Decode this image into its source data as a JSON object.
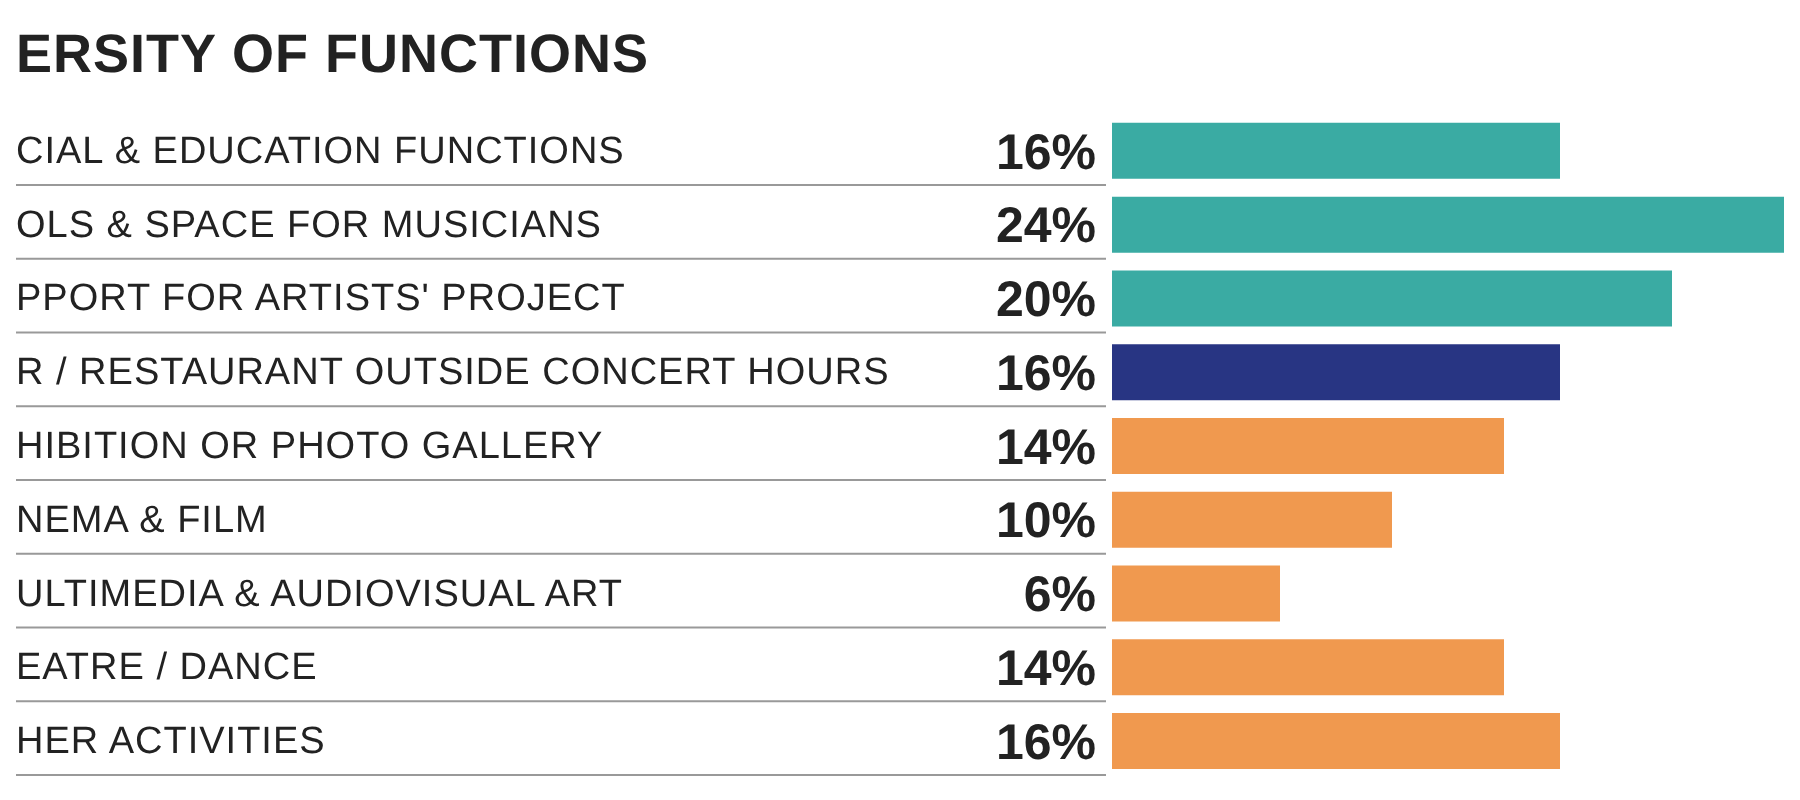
{
  "chart_data": {
    "type": "bar",
    "orientation": "horizontal",
    "title": "ERSITY OF FUNCTIONS",
    "categories": [
      "CIAL & EDUCATION FUNCTIONS",
      "OLS & SPACE FOR MUSICIANS",
      "PPORT FOR ARTISTS' PROJECT",
      "R / RESTAURANT OUTSIDE CONCERT HOURS",
      "HIBITION OR PHOTO GALLERY",
      "NEMA & FILM",
      "ULTIMEDIA & AUDIOVISUAL ART",
      "EATRE / DANCE",
      "HER ACTIVITIES"
    ],
    "values": [
      16,
      24,
      20,
      16,
      14,
      10,
      6,
      14,
      16
    ],
    "value_labels": [
      "16%",
      "24%",
      "20%",
      "16%",
      "14%",
      "10%",
      "6%",
      "14%",
      "16%"
    ],
    "colors": [
      "#3aaba3",
      "#3aaba3",
      "#3aaba3",
      "#283583",
      "#f0994f",
      "#f0994f",
      "#f0994f",
      "#f0994f",
      "#f0994f"
    ]
  }
}
